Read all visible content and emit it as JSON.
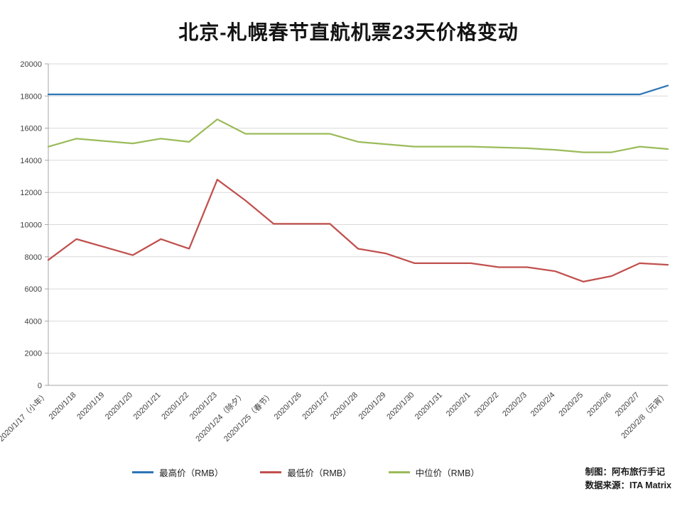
{
  "title": "北京-札幌春节直航机票23天价格变动",
  "credits": {
    "author": "制图：阿布旅行手记",
    "source": "数据来源：ITA Matrix"
  },
  "chart_data": {
    "type": "line",
    "title": "北京-札幌春节直航机票23天价格变动",
    "categories": [
      "2020/1/17（小年）",
      "2020/1/18",
      "2020/1/19",
      "2020/1/20",
      "2020/1/21",
      "2020/1/22",
      "2020/1/23",
      "2020/1/24（除夕）",
      "2020/1/25（春节）",
      "2020/1/26",
      "2020/1/27",
      "2020/1/28",
      "2020/1/29",
      "2020/1/30",
      "2020/1/31",
      "2020/2/1",
      "2020/2/2",
      "2020/2/3",
      "2020/2/4",
      "2020/2/5",
      "2020/2/6",
      "2020/2/7",
      "2020/2/8（元宵）"
    ],
    "series": [
      {
        "name": "最高价（RMB）",
        "color": "#2e75b6",
        "values": [
          18100,
          18100,
          18100,
          18100,
          18100,
          18100,
          18100,
          18100,
          18100,
          18100,
          18100,
          18100,
          18100,
          18100,
          18100,
          18100,
          18100,
          18100,
          18100,
          18100,
          18100,
          18100,
          18650
        ]
      },
      {
        "name": "最低价（RMB）",
        "color": "#c0504d",
        "values": [
          7800,
          9100,
          8600,
          8100,
          9100,
          8500,
          12800,
          11500,
          10050,
          10050,
          10050,
          8500,
          8200,
          7600,
          7600,
          7600,
          7350,
          7350,
          7100,
          6450,
          6800,
          7600,
          7500
        ]
      },
      {
        "name": "中位价（RMB）",
        "color": "#9bbb59",
        "values": [
          14850,
          15350,
          15200,
          15050,
          15350,
          15150,
          16550,
          15650,
          15650,
          15650,
          15650,
          15150,
          15000,
          14850,
          14850,
          14850,
          14800,
          14750,
          14650,
          14500,
          14500,
          14850,
          14700
        ]
      }
    ],
    "xlabel": "",
    "ylabel": "",
    "ylim": [
      0,
      20000
    ],
    "ytick_step": 2000,
    "grid": true,
    "legend_position": "bottom"
  }
}
